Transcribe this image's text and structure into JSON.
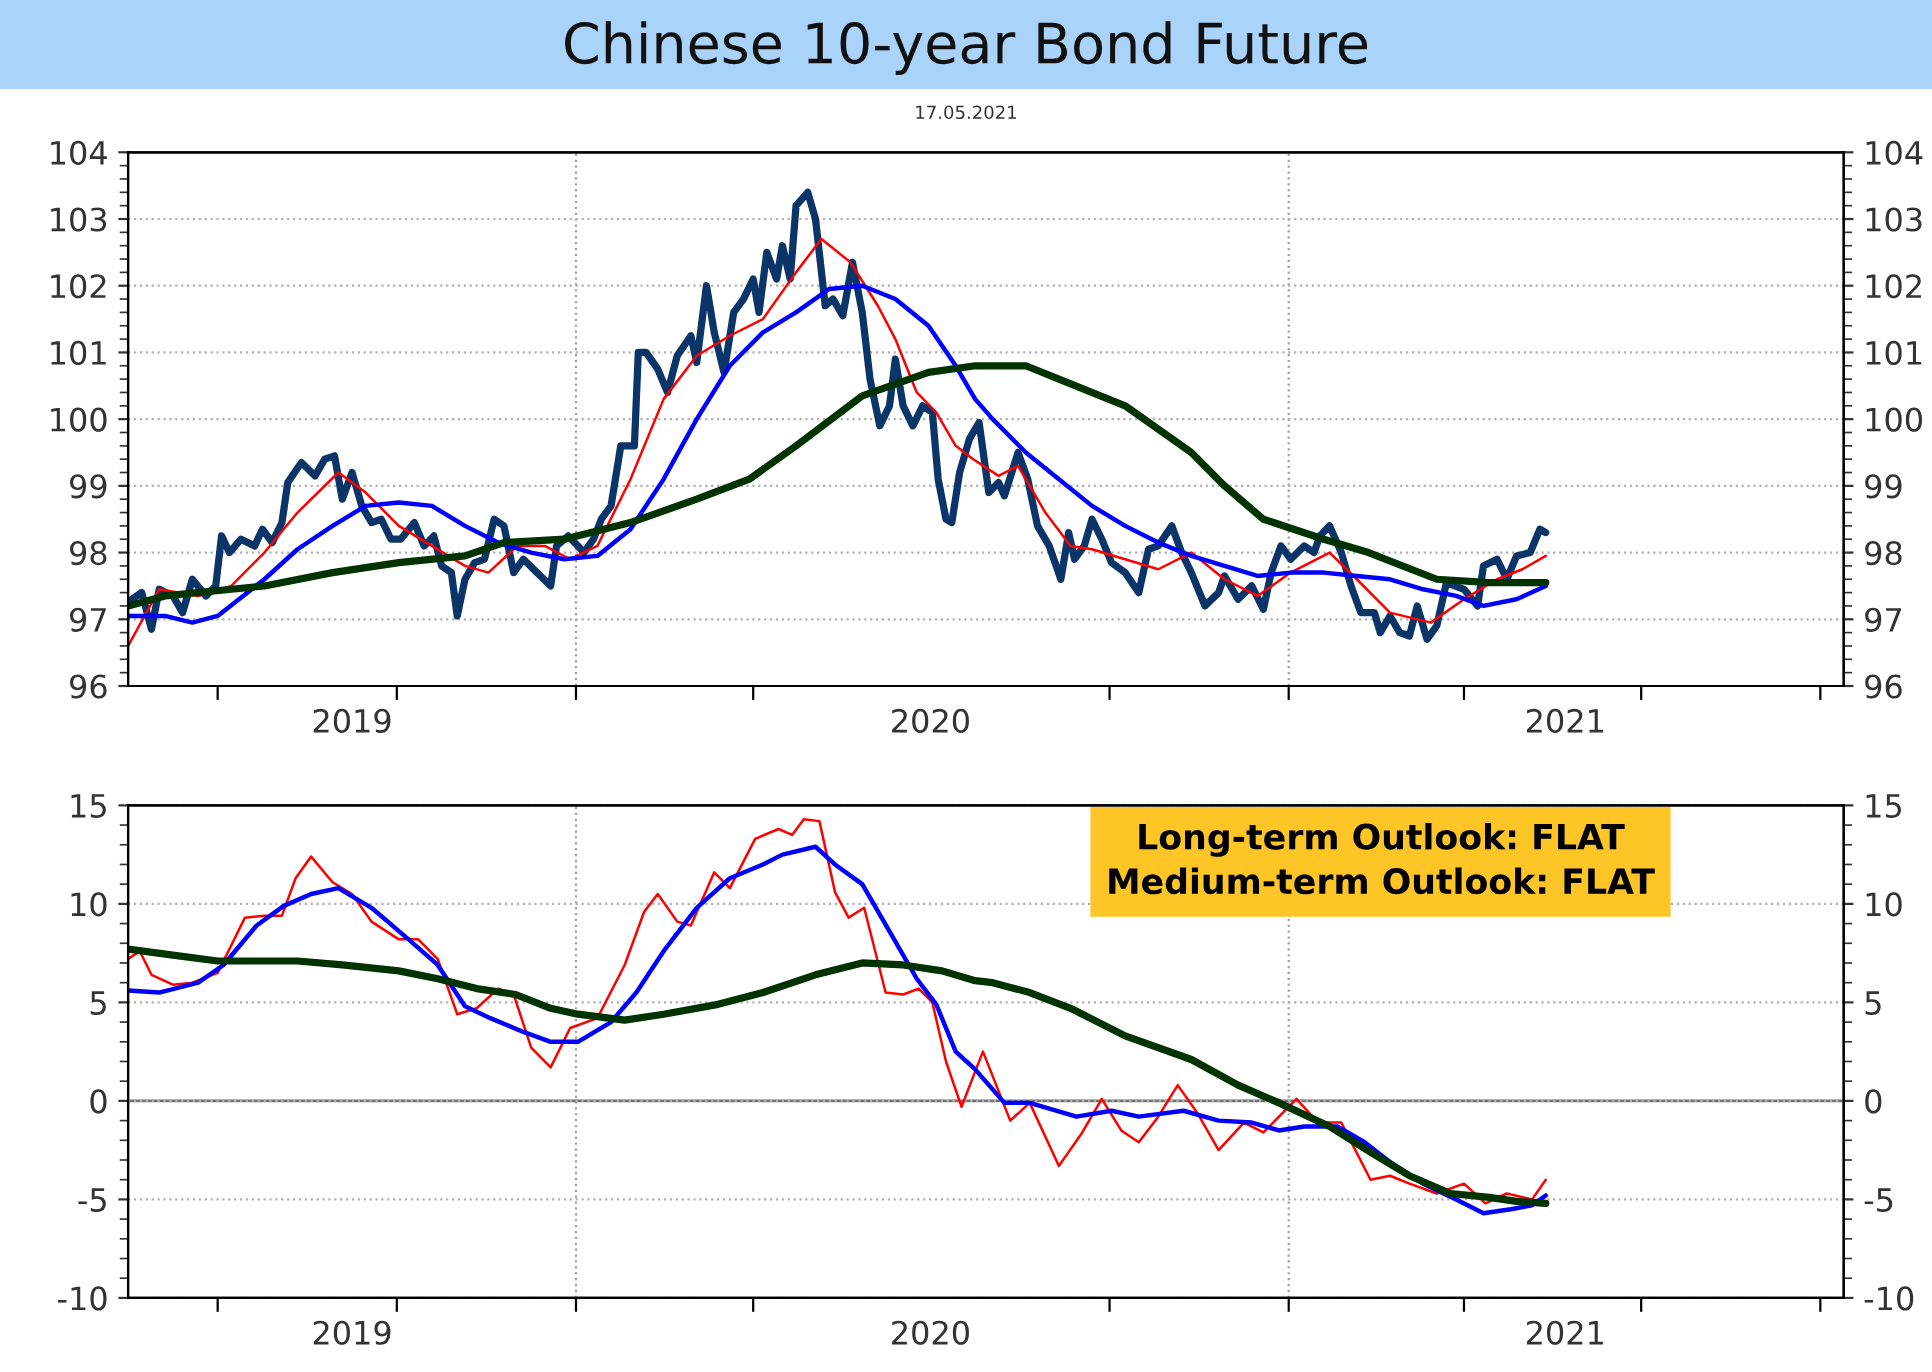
{
  "chart_data": [
    {
      "type": "line",
      "title": "Chinese 10-year Bond Future",
      "subtitle": "17.05.2021",
      "xlim": [
        "2019-05-16",
        "2021-10-13"
      ],
      "xticks": [
        {
          "value": "2019-07-01",
          "label": null
        },
        {
          "value": "2019-09-08",
          "label": "2019"
        },
        {
          "value": "2019-10-01",
          "label": null
        },
        {
          "value": "2020-01-01",
          "label": null
        },
        {
          "value": "2020-04-01",
          "label": null
        },
        {
          "value": "2020-07-01",
          "label": "2020"
        },
        {
          "value": "2020-10-01",
          "label": null
        },
        {
          "value": "2021-01-01",
          "label": null
        },
        {
          "value": "2021-04-01",
          "label": null
        },
        {
          "value": "2021-05-23",
          "label": "2021"
        },
        {
          "value": "2021-07-01",
          "label": null
        },
        {
          "value": "2021-10-01",
          "label": null
        }
      ],
      "ylim": [
        96,
        104
      ],
      "yticks": [
        96,
        97,
        98,
        99,
        100,
        101,
        102,
        103,
        104
      ],
      "y2lim": [
        96,
        104
      ],
      "y2ticks": [
        96,
        97,
        98,
        99,
        100,
        101,
        102,
        103,
        104
      ],
      "grid": "y",
      "legend": false,
      "ref_lines": [
        {
          "axis": "x",
          "value": "2020-01-01",
          "color": "#a0a0a0",
          "line_style": "dotted"
        },
        {
          "axis": "x",
          "value": "2021-01-01",
          "color": "#a0a0a0",
          "line_style": "dotted"
        }
      ],
      "series": [
        {
          "color": "#0b3568",
          "x": [
            "2019-05-18",
            "2019-05-23",
            "2019-05-28",
            "2019-06-01",
            "2019-06-08",
            "2019-06-13",
            "2019-06-18",
            "2019-06-25",
            "2019-06-30",
            "2019-07-03",
            "2019-07-07",
            "2019-07-13",
            "2019-07-20",
            "2019-07-24",
            "2019-07-29",
            "2019-08-03",
            "2019-08-06",
            "2019-08-13",
            "2019-08-20",
            "2019-08-25",
            "2019-08-30",
            "2019-09-03",
            "2019-09-08",
            "2019-09-13",
            "2019-09-18",
            "2019-09-23",
            "2019-09-28",
            "2019-10-03",
            "2019-10-10",
            "2019-10-15",
            "2019-10-20",
            "2019-10-24",
            "2019-10-29",
            "2019-11-01",
            "2019-11-05",
            "2019-11-10",
            "2019-11-15",
            "2019-11-20",
            "2019-11-25",
            "2019-11-30",
            "2019-12-05",
            "2019-12-12",
            "2019-12-19",
            "2019-12-22",
            "2019-12-28",
            "2020-01-02",
            "2020-01-05",
            "2020-01-10",
            "2020-01-14",
            "2020-01-19",
            "2020-01-24",
            "2020-01-31",
            "2020-02-02",
            "2020-02-06",
            "2020-02-12",
            "2020-02-17",
            "2020-02-22",
            "2020-02-29",
            "2020-03-03",
            "2020-03-08",
            "2020-03-12",
            "2020-03-17",
            "2020-03-22",
            "2020-03-27",
            "2020-04-01",
            "2020-04-04",
            "2020-04-08",
            "2020-04-13",
            "2020-04-16",
            "2020-04-20",
            "2020-04-23",
            "2020-04-29",
            "2020-05-03",
            "2020-05-08",
            "2020-05-12",
            "2020-05-17",
            "2020-05-22",
            "2020-05-27",
            "2020-05-31",
            "2020-06-05",
            "2020-06-10",
            "2020-06-13",
            "2020-06-17",
            "2020-06-22",
            "2020-06-27",
            "2020-07-02",
            "2020-07-05",
            "2020-07-09",
            "2020-07-12",
            "2020-07-16",
            "2020-07-21",
            "2020-07-26",
            "2020-07-31",
            "2020-08-05",
            "2020-08-08",
            "2020-08-15",
            "2020-08-20",
            "2020-08-25",
            "2020-08-31",
            "2020-09-06",
            "2020-09-10",
            "2020-09-13",
            "2020-09-18",
            "2020-09-22",
            "2020-09-27",
            "2020-10-02",
            "2020-10-09",
            "2020-10-16",
            "2020-10-21",
            "2020-10-26",
            "2020-11-02",
            "2020-11-07",
            "2020-11-12",
            "2020-11-19",
            "2020-11-26",
            "2020-11-29",
            "2020-12-06",
            "2020-12-13",
            "2020-12-19",
            "2020-12-23",
            "2020-12-28",
            "2021-01-02",
            "2021-01-09",
            "2021-01-14",
            "2021-01-17",
            "2021-01-22",
            "2021-01-28",
            "2021-02-02",
            "2021-02-07",
            "2021-02-14",
            "2021-02-17",
            "2021-02-22",
            "2021-02-27",
            "2021-03-04",
            "2021-03-08",
            "2021-03-13",
            "2021-03-18",
            "2021-03-23",
            "2021-04-01",
            "2021-04-08",
            "2021-04-11",
            "2021-04-18",
            "2021-04-23",
            "2021-04-28",
            "2021-05-05",
            "2021-05-10",
            "2021-05-13"
          ],
          "values": [
            97.3,
            97.4,
            96.85,
            97.45,
            97.35,
            97.1,
            97.6,
            97.35,
            97.5,
            98.25,
            98.0,
            98.2,
            98.1,
            98.35,
            98.15,
            98.45,
            99.05,
            99.35,
            99.15,
            99.4,
            99.45,
            98.8,
            99.2,
            98.7,
            98.45,
            98.5,
            98.2,
            98.2,
            98.45,
            98.1,
            98.25,
            97.8,
            97.7,
            97.05,
            97.6,
            97.85,
            97.9,
            98.5,
            98.4,
            97.7,
            97.9,
            97.7,
            97.5,
            98.1,
            98.25,
            98.1,
            98.0,
            98.2,
            98.5,
            98.7,
            99.6,
            99.6,
            101.0,
            101.0,
            100.75,
            100.4,
            100.95,
            101.25,
            100.85,
            102.0,
            101.3,
            100.7,
            101.6,
            101.8,
            102.1,
            101.6,
            102.5,
            102.1,
            102.6,
            102.1,
            103.2,
            103.4,
            103.0,
            101.7,
            101.8,
            101.55,
            102.35,
            101.6,
            100.6,
            99.9,
            100.2,
            100.9,
            100.2,
            99.9,
            100.2,
            100.1,
            99.1,
            98.5,
            98.45,
            99.2,
            99.7,
            99.95,
            98.9,
            99.05,
            98.85,
            99.5,
            99.1,
            98.4,
            98.1,
            97.6,
            98.3,
            97.9,
            98.1,
            98.5,
            98.2,
            97.85,
            97.7,
            97.4,
            98.05,
            98.1,
            98.4,
            98.0,
            97.7,
            97.2,
            97.4,
            97.65,
            97.3,
            97.5,
            97.15,
            97.7,
            98.1,
            97.9,
            98.1,
            98.0,
            98.25,
            98.4,
            98.0,
            97.5,
            97.1,
            97.1,
            96.8,
            97.05,
            96.8,
            96.75,
            97.2,
            96.7,
            96.9,
            97.55,
            97.45,
            97.2,
            97.8,
            97.9,
            97.6,
            97.95,
            98.0,
            98.35,
            98.3
          ]
        },
        {
          "color": "#ff0000",
          "x": [
            "2019-05-16",
            "2019-06-01",
            "2019-06-21",
            "2019-07-08",
            "2019-07-25",
            "2019-08-11",
            "2019-09-01",
            "2019-09-15",
            "2019-10-02",
            "2019-10-19",
            "2019-11-05",
            "2019-11-17",
            "2019-12-02",
            "2019-12-16",
            "2019-12-29",
            "2020-01-12",
            "2020-01-29",
            "2020-02-15",
            "2020-03-03",
            "2020-03-20",
            "2020-04-06",
            "2020-04-23",
            "2020-05-06",
            "2020-05-21",
            "2020-06-04",
            "2020-06-13",
            "2020-06-24",
            "2020-07-04",
            "2020-07-14",
            "2020-07-23",
            "2020-08-05",
            "2020-08-15",
            "2020-08-29",
            "2020-09-11",
            "2020-09-22",
            "2020-10-09",
            "2020-10-26",
            "2020-11-12",
            "2020-11-29",
            "2020-12-16",
            "2021-01-02",
            "2021-01-22",
            "2021-02-05",
            "2021-02-22",
            "2021-03-15",
            "2021-04-01",
            "2021-04-18",
            "2021-05-01",
            "2021-05-13"
          ],
          "values": [
            96.6,
            97.45,
            97.35,
            97.5,
            98.0,
            98.6,
            99.2,
            98.9,
            98.4,
            98.1,
            97.8,
            97.7,
            98.1,
            98.1,
            97.9,
            98.1,
            99.1,
            100.3,
            100.95,
            101.25,
            101.5,
            102.2,
            102.7,
            102.35,
            101.7,
            101.2,
            100.4,
            100.1,
            99.6,
            99.4,
            99.15,
            99.3,
            98.6,
            98.1,
            98.05,
            97.9,
            97.75,
            98.0,
            97.6,
            97.35,
            97.7,
            98.0,
            97.6,
            97.1,
            96.95,
            97.3,
            97.6,
            97.75,
            97.95
          ]
        },
        {
          "color": "#0000ff",
          "x": [
            "2019-05-16",
            "2019-06-04",
            "2019-06-18",
            "2019-07-01",
            "2019-07-25",
            "2019-08-11",
            "2019-08-29",
            "2019-09-15",
            "2019-10-02",
            "2019-10-19",
            "2019-11-05",
            "2019-11-22",
            "2019-12-09",
            "2019-12-26",
            "2020-01-12",
            "2020-01-29",
            "2020-02-15",
            "2020-03-03",
            "2020-03-20",
            "2020-04-06",
            "2020-04-23",
            "2020-05-10",
            "2020-05-27",
            "2020-06-13",
            "2020-06-30",
            "2020-07-14",
            "2020-07-24",
            "2020-08-02",
            "2020-08-19",
            "2020-09-05",
            "2020-09-22",
            "2020-10-09",
            "2020-10-26",
            "2020-11-12",
            "2020-11-29",
            "2020-12-16",
            "2021-01-02",
            "2021-01-19",
            "2021-02-05",
            "2021-02-22",
            "2021-03-11",
            "2021-03-28",
            "2021-04-11",
            "2021-04-28",
            "2021-05-13"
          ],
          "values": [
            97.05,
            97.05,
            96.95,
            97.05,
            97.6,
            98.05,
            98.4,
            98.7,
            98.75,
            98.7,
            98.4,
            98.15,
            98.0,
            97.9,
            97.95,
            98.35,
            99.1,
            100.0,
            100.8,
            101.3,
            101.6,
            101.95,
            102.0,
            101.8,
            101.4,
            100.8,
            100.3,
            100.0,
            99.5,
            99.1,
            98.7,
            98.4,
            98.15,
            97.95,
            97.8,
            97.65,
            97.7,
            97.7,
            97.65,
            97.6,
            97.45,
            97.35,
            97.2,
            97.3,
            97.5
          ]
        },
        {
          "color": "#003300",
          "x": [
            "2019-05-16",
            "2019-06-04",
            "2019-07-08",
            "2019-07-25",
            "2019-08-29",
            "2019-10-02",
            "2019-11-05",
            "2019-11-25",
            "2019-12-26",
            "2020-01-29",
            "2020-03-03",
            "2020-03-30",
            "2020-04-23",
            "2020-05-27",
            "2020-06-30",
            "2020-07-24",
            "2020-08-19",
            "2020-09-05",
            "2020-10-09",
            "2020-11-12",
            "2020-11-29",
            "2020-12-19",
            "2021-01-19",
            "2021-02-11",
            "2021-03-18",
            "2021-04-14",
            "2021-05-13"
          ],
          "values": [
            97.2,
            97.35,
            97.45,
            97.5,
            97.7,
            97.85,
            97.95,
            98.15,
            98.2,
            98.45,
            98.8,
            99.1,
            99.6,
            100.35,
            100.7,
            100.8,
            100.8,
            100.6,
            100.2,
            99.5,
            99.0,
            98.5,
            98.2,
            98.0,
            97.6,
            97.55,
            97.55
          ]
        }
      ]
    },
    {
      "type": "line",
      "xlim": [
        "2019-05-16",
        "2021-10-13"
      ],
      "xticks": [
        {
          "value": "2019-07-01",
          "label": null
        },
        {
          "value": "2019-09-08",
          "label": "2019"
        },
        {
          "value": "2019-10-01",
          "label": null
        },
        {
          "value": "2020-01-01",
          "label": null
        },
        {
          "value": "2020-04-01",
          "label": null
        },
        {
          "value": "2020-07-01",
          "label": "2020"
        },
        {
          "value": "2020-10-01",
          "label": null
        },
        {
          "value": "2021-01-01",
          "label": null
        },
        {
          "value": "2021-04-01",
          "label": null
        },
        {
          "value": "2021-05-23",
          "label": "2021"
        },
        {
          "value": "2021-07-01",
          "label": null
        },
        {
          "value": "2021-10-01",
          "label": null
        }
      ],
      "ylim": [
        -10,
        15
      ],
      "yticks": [
        -10,
        -5,
        0,
        5,
        10,
        15
      ],
      "y2lim": [
        -10,
        15
      ],
      "y2ticks": [
        -10,
        -5,
        0,
        5,
        10,
        15
      ],
      "grid": "y",
      "legend": false,
      "annotations": [
        "Long-term Outlook: FLAT",
        "Medium-term Outlook: FLAT"
      ],
      "ref_lines": [
        {
          "axis": "x",
          "value": "2020-01-01",
          "color": "#a0a0a0",
          "line_style": "dotted"
        },
        {
          "axis": "x",
          "value": "2021-01-01",
          "color": "#a0a0a0",
          "line_style": "dotted"
        },
        {
          "axis": "y",
          "value": 0,
          "color": "#707070",
          "line_style": "solid"
        }
      ],
      "series": [
        {
          "color": "#ff0000",
          "x": [
            "2019-05-16",
            "2019-05-22",
            "2019-05-28",
            "2019-06-08",
            "2019-06-18",
            "2019-07-01",
            "2019-07-08",
            "2019-07-15",
            "2019-07-25",
            "2019-08-03",
            "2019-08-10",
            "2019-08-18",
            "2019-08-29",
            "2019-09-08",
            "2019-09-18",
            "2019-10-02",
            "2019-10-12",
            "2019-10-22",
            "2019-11-01",
            "2019-11-11",
            "2019-11-22",
            "2019-11-30",
            "2019-12-09",
            "2019-12-19",
            "2019-12-29",
            "2020-01-12",
            "2020-01-26",
            "2020-02-05",
            "2020-02-12",
            "2020-02-22",
            "2020-02-29",
            "2020-03-12",
            "2020-03-20",
            "2020-04-02",
            "2020-04-14",
            "2020-04-21",
            "2020-04-27",
            "2020-05-05",
            "2020-05-13",
            "2020-05-20",
            "2020-05-28",
            "2020-06-08",
            "2020-06-17",
            "2020-06-25",
            "2020-07-02",
            "2020-07-09",
            "2020-07-17",
            "2020-07-24",
            "2020-07-28",
            "2020-08-11",
            "2020-08-21",
            "2020-09-05",
            "2020-09-17",
            "2020-09-27",
            "2020-10-07",
            "2020-10-16",
            "2020-10-26",
            "2020-11-05",
            "2020-11-15",
            "2020-11-26",
            "2020-12-09",
            "2020-12-19",
            "2021-01-05",
            "2021-01-16",
            "2021-01-28",
            "2021-02-12",
            "2021-02-22",
            "2021-03-04",
            "2021-03-18",
            "2021-04-01",
            "2021-04-12",
            "2021-04-23",
            "2021-05-06",
            "2021-05-13"
          ],
          "values": [
            7.2,
            7.6,
            6.4,
            5.9,
            6.0,
            6.5,
            7.9,
            9.3,
            9.4,
            9.4,
            11.3,
            12.4,
            11.1,
            10.5,
            9.1,
            8.2,
            8.2,
            7.2,
            4.4,
            4.7,
            5.7,
            5.4,
            2.7,
            1.7,
            3.7,
            4.2,
            6.9,
            9.6,
            10.5,
            9.1,
            8.9,
            11.6,
            10.8,
            13.3,
            13.8,
            13.5,
            14.3,
            14.2,
            10.6,
            9.3,
            9.8,
            5.5,
            5.4,
            5.7,
            5.0,
            2.0,
            -0.3,
            1.5,
            2.5,
            -1.0,
            -0.1,
            -3.3,
            -1.6,
            0.1,
            -1.5,
            -2.1,
            -0.8,
            0.8,
            -0.6,
            -2.5,
            -1.1,
            -1.6,
            0.1,
            -1.1,
            -1.1,
            -4.0,
            -3.8,
            -4.2,
            -4.7,
            -4.2,
            -5.2,
            -4.7,
            -5.0,
            -4.0
          ]
        },
        {
          "color": "#0000ff",
          "x": [
            "2019-05-16",
            "2019-06-01",
            "2019-06-21",
            "2019-07-04",
            "2019-07-21",
            "2019-08-04",
            "2019-08-18",
            "2019-09-01",
            "2019-09-18",
            "2019-10-07",
            "2019-10-22",
            "2019-11-05",
            "2019-11-18",
            "2019-12-05",
            "2019-12-19",
            "2020-01-02",
            "2020-01-19",
            "2020-02-01",
            "2020-02-15",
            "2020-03-03",
            "2020-03-20",
            "2020-04-06",
            "2020-04-16",
            "2020-05-03",
            "2020-05-13",
            "2020-05-27",
            "2020-06-10",
            "2020-06-24",
            "2020-07-04",
            "2020-07-14",
            "2020-07-24",
            "2020-08-08",
            "2020-08-21",
            "2020-09-14",
            "2020-10-02",
            "2020-10-16",
            "2020-11-08",
            "2020-11-26",
            "2020-12-13",
            "2020-12-27",
            "2021-01-09",
            "2021-01-26",
            "2021-02-09",
            "2021-02-22",
            "2021-03-11",
            "2021-03-28",
            "2021-04-11",
            "2021-04-25",
            "2021-05-06",
            "2021-05-13"
          ],
          "values": [
            5.6,
            5.5,
            6.0,
            6.9,
            8.9,
            9.9,
            10.5,
            10.8,
            9.8,
            8.2,
            6.9,
            4.8,
            4.2,
            3.5,
            3.0,
            3.0,
            4.0,
            5.5,
            7.6,
            9.8,
            11.3,
            12.0,
            12.5,
            12.9,
            12.0,
            11.0,
            8.6,
            6.2,
            4.9,
            2.5,
            1.6,
            -0.1,
            -0.1,
            -0.8,
            -0.5,
            -0.8,
            -0.5,
            -1.0,
            -1.1,
            -1.5,
            -1.3,
            -1.3,
            -2.1,
            -3.1,
            -4.2,
            -5.0,
            -5.7,
            -5.5,
            -5.3,
            -4.8
          ]
        },
        {
          "color": "#003300",
          "x": [
            "2019-05-16",
            "2019-06-08",
            "2019-07-01",
            "2019-07-25",
            "2019-08-11",
            "2019-09-03",
            "2019-10-02",
            "2019-10-22",
            "2019-11-11",
            "2019-12-01",
            "2019-12-19",
            "2020-01-02",
            "2020-01-26",
            "2020-02-15",
            "2020-03-14",
            "2020-04-06",
            "2020-05-03",
            "2020-05-27",
            "2020-06-17",
            "2020-07-07",
            "2020-07-24",
            "2020-08-02",
            "2020-08-21",
            "2020-09-11",
            "2020-10-09",
            "2020-11-12",
            "2020-12-06",
            "2020-12-27",
            "2021-01-22",
            "2021-02-12",
            "2021-03-04",
            "2021-03-25",
            "2021-04-14",
            "2021-04-28",
            "2021-05-13"
          ],
          "values": [
            7.7,
            7.4,
            7.1,
            7.1,
            7.1,
            6.9,
            6.6,
            6.2,
            5.7,
            5.4,
            4.7,
            4.4,
            4.1,
            4.4,
            4.9,
            5.5,
            6.4,
            7.0,
            6.9,
            6.6,
            6.1,
            6.0,
            5.5,
            4.7,
            3.3,
            2.1,
            0.8,
            -0.1,
            -1.3,
            -2.6,
            -3.8,
            -4.7,
            -4.9,
            -5.1,
            -5.2
          ]
        }
      ]
    }
  ]
}
